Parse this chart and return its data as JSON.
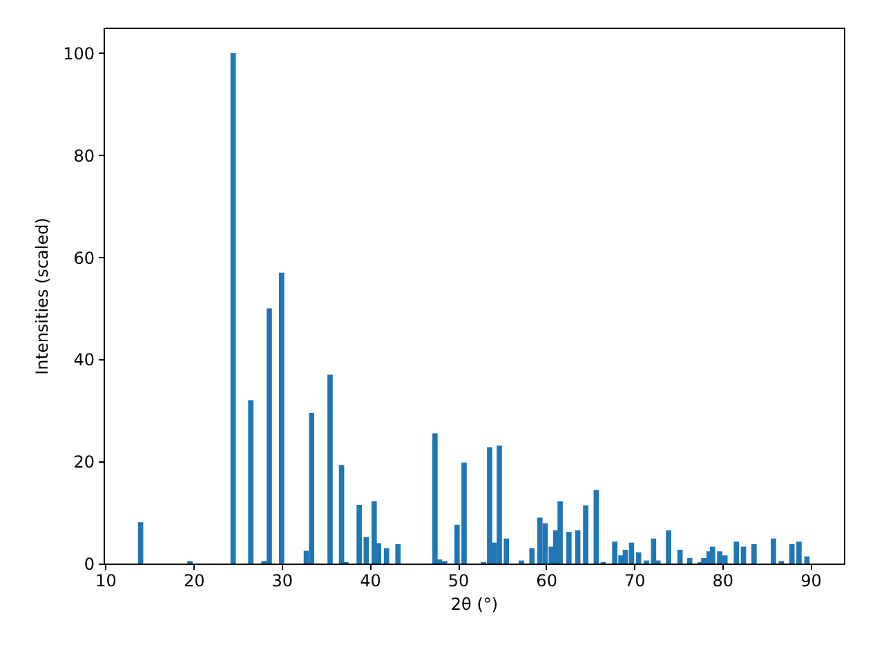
{
  "chart_data": {
    "type": "bar",
    "xlabel": "2θ (°)",
    "ylabel": "Intensities (scaled)",
    "x": [
      14.0,
      19.6,
      24.5,
      26.5,
      28.0,
      28.6,
      30.0,
      32.8,
      33.4,
      35.5,
      36.8,
      37.3,
      38.8,
      39.6,
      40.5,
      41.0,
      41.9,
      43.2,
      47.4,
      47.9,
      48.5,
      49.9,
      50.7,
      52.9,
      53.6,
      54.1,
      54.7,
      55.5,
      57.2,
      58.4,
      59.3,
      59.9,
      60.6,
      61.1,
      61.6,
      62.6,
      63.6,
      64.5,
      65.7,
      66.5,
      67.8,
      68.5,
      69.0,
      69.7,
      70.5,
      71.4,
      72.2,
      72.7,
      73.9,
      75.2,
      76.3,
      77.5,
      77.9,
      78.5,
      78.9,
      79.7,
      80.3,
      81.6,
      82.4,
      83.6,
      85.8,
      86.7,
      87.9,
      88.7,
      89.6
    ],
    "values": [
      8.1,
      0.5,
      100,
      32,
      0.5,
      50,
      57,
      2.5,
      29.5,
      37,
      19.3,
      0.3,
      11.5,
      5.2,
      12.2,
      4.0,
      3.0,
      3.8,
      25.5,
      0.8,
      0.5,
      7.6,
      19.8,
      0.3,
      22.8,
      4.1,
      23.1,
      4.9,
      0.6,
      3.0,
      9.0,
      7.9,
      3.3,
      6.5,
      12.2,
      6.2,
      6.5,
      11.4,
      14.4,
      0.3,
      4.3,
      1.6,
      2.7,
      4.1,
      2.2,
      0.6,
      4.9,
      0.6,
      6.5,
      2.7,
      1.1,
      0.3,
      1.1,
      2.4,
      3.3,
      2.4,
      1.6,
      4.3,
      3.3,
      3.8,
      4.9,
      0.5,
      3.8,
      4.3,
      1.4
    ],
    "color": "#1f77b4",
    "xlim": [
      9.8,
      93.8
    ],
    "xticks": [
      10,
      20,
      30,
      40,
      50,
      60,
      70,
      80,
      90
    ],
    "ylim": [
      0,
      105
    ],
    "yticks": [
      0,
      20,
      40,
      60,
      80,
      100
    ],
    "grid": false
  }
}
